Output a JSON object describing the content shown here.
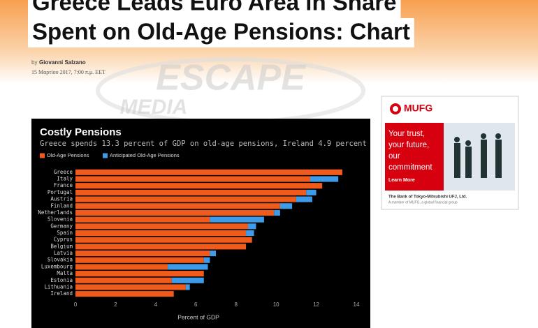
{
  "article": {
    "headline": [
      "Greece Leads Euro Area in Share",
      "Spent on Old-Age Pensions: Chart"
    ],
    "byline_prefix": "by",
    "author": "Giovanni Salzano",
    "date": "15 Μαρτίου 2017, 7:00 π.μ. EET",
    "watermark": [
      "ESCAPE",
      "MEDIA"
    ]
  },
  "ad": {
    "brand": "MUFG",
    "tagline": [
      "Your trust,",
      "your future,",
      "our",
      "commitment"
    ],
    "cta": "Learn More",
    "bank": "The Bank of Tokyo-Mitsubishi UFJ, Ltd.",
    "member": "A member of MUFG, a global financial group"
  },
  "chart_data": {
    "type": "stacked-barh",
    "title": "Costly Pensions",
    "subtitle": "Greece spends 13.3 percent of GDP on old-age pensions, Ireland 4.9 percent",
    "x_label": "Percent of GDP",
    "categories": [
      "Greece",
      "Italy",
      "France",
      "Portugal",
      "Austria",
      "Finland",
      "Netherlands",
      "Slovenia",
      "Germany",
      "Spain",
      "Cyprus",
      "Belgium",
      "Latvia",
      "Slovakia",
      "Luxembourg",
      "Malta",
      "Estonia",
      "Lithuania",
      "Ireland"
    ],
    "series": [
      {
        "name": "Old-Age Pensions",
        "color": "#f05a1a",
        "values": [
          13.3,
          11.7,
          12.3,
          11.5,
          11.0,
          10.2,
          9.9,
          6.7,
          8.6,
          8.5,
          8.8,
          8.5,
          6.7,
          6.4,
          4.6,
          6.4,
          4.8,
          5.5,
          4.9
        ]
      },
      {
        "name": "Anticipated Old-Age Pensions",
        "color": "#3d9be9",
        "values": [
          0,
          1.4,
          0,
          0.5,
          0.8,
          0.6,
          0.3,
          2.7,
          0.4,
          0.4,
          0,
          0,
          0.3,
          0.3,
          2.0,
          0,
          1.6,
          0.2,
          0
        ]
      }
    ],
    "xlim": [
      0,
      14
    ],
    "xticks": [
      0,
      2,
      4,
      6,
      8,
      10,
      12,
      14
    ],
    "grid": false
  }
}
